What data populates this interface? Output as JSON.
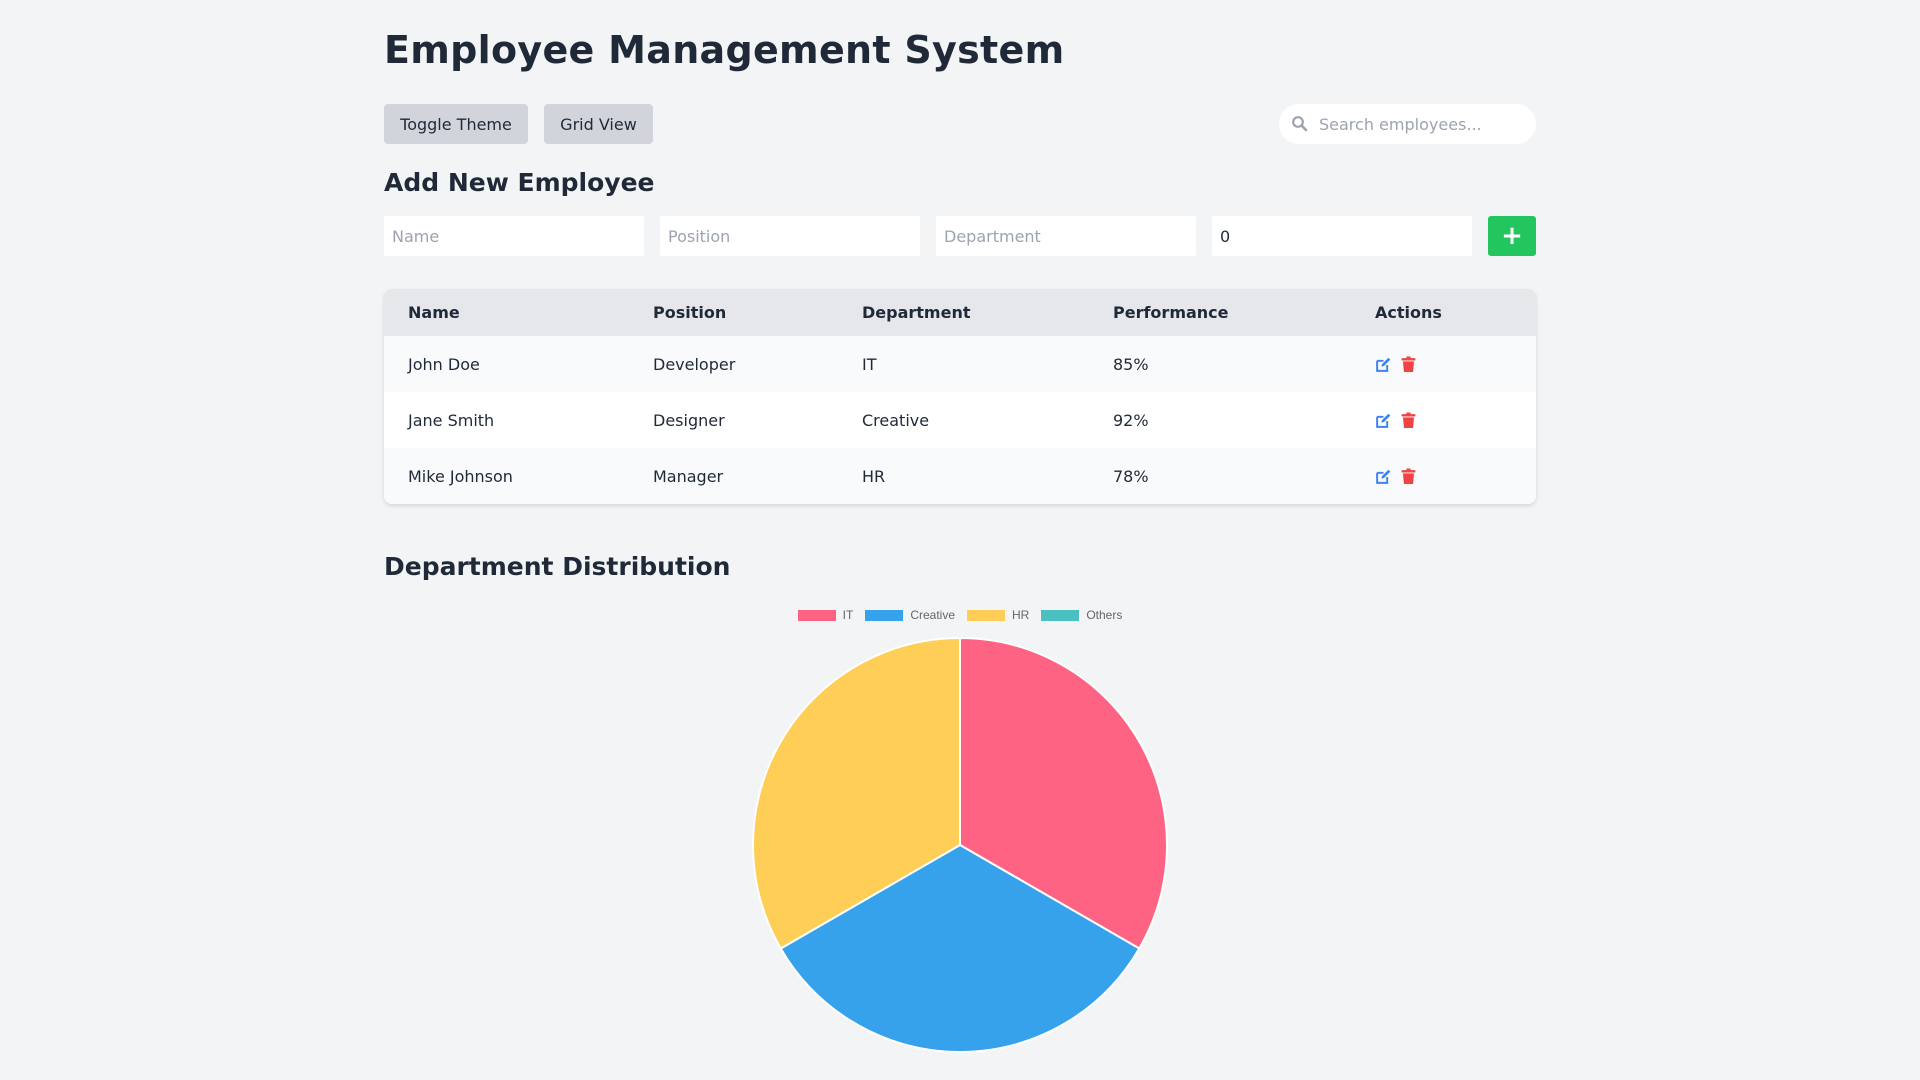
{
  "page": {
    "title": "Employee Management System"
  },
  "toolbar": {
    "toggle_theme_label": "Toggle Theme",
    "grid_view_label": "Grid View",
    "search_placeholder": "Search employees...",
    "search_icon": "search-icon"
  },
  "add_form": {
    "title": "Add New Employee",
    "name_placeholder": "Name",
    "position_placeholder": "Position",
    "department_placeholder": "Department",
    "performance_value": "0",
    "add_button_label": "+"
  },
  "table": {
    "headers": {
      "name": "Name",
      "position": "Position",
      "department": "Department",
      "performance": "Performance",
      "actions": "Actions"
    },
    "rows": [
      {
        "name": "John Doe",
        "position": "Developer",
        "department": "IT",
        "performance": "85%"
      },
      {
        "name": "Jane Smith",
        "position": "Designer",
        "department": "Creative",
        "performance": "92%"
      },
      {
        "name": "Mike Johnson",
        "position": "Manager",
        "department": "HR",
        "performance": "78%"
      }
    ],
    "action_icons": [
      "edit-icon",
      "trash-icon"
    ]
  },
  "distribution": {
    "title": "Department Distribution"
  },
  "colors": {
    "add_button": "#22c55e",
    "edit_icon": "#3b82f6",
    "trash_icon": "#ef4444"
  },
  "chart_data": {
    "type": "pie",
    "title": "",
    "legend_position": "top",
    "categories": [
      "IT",
      "Creative",
      "HR",
      "Others"
    ],
    "values": [
      1,
      1,
      1,
      0
    ],
    "colors": [
      "#ff6384",
      "#36a2eb",
      "#ffce56",
      "#4bc0c0"
    ]
  }
}
